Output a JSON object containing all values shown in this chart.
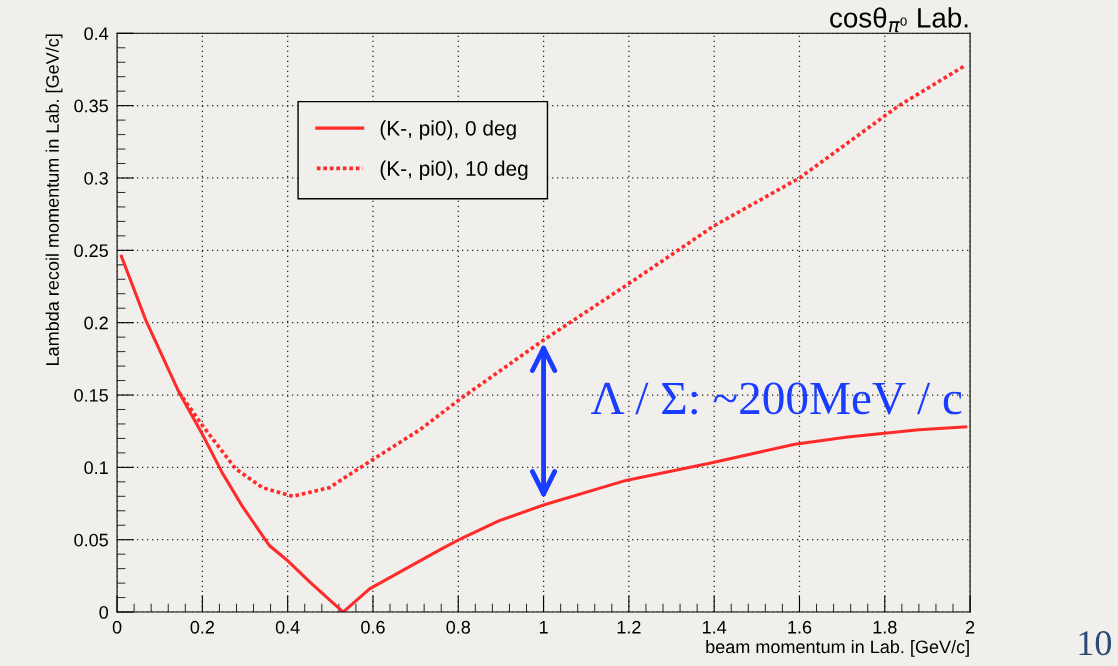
{
  "chart_data": {
    "type": "line",
    "title": "cosθ$_{π⁰}$ Lab.",
    "xlabel": "beam momentum in Lab. [GeV/c]",
    "ylabel": "Lambda recoil momentum in Lab. [GeV/c]",
    "series": [
      {
        "name": "(K-, pi0), 0 deg",
        "color": "#ff2a2a",
        "line_style": "solid",
        "x": [
          0.01,
          0.067,
          0.145,
          0.198,
          0.247,
          0.294,
          0.357,
          0.398,
          0.451,
          0.53,
          0.592,
          0.671,
          0.763,
          0.808,
          0.895,
          1.0,
          1.193,
          1.392,
          1.589,
          1.713,
          1.88,
          1.99
        ],
        "values": [
          0.246,
          0.202,
          0.152,
          0.124,
          0.096,
          0.073,
          0.046,
          0.036,
          0.021,
          0.0,
          0.016,
          0.029,
          0.044,
          0.051,
          0.063,
          0.074,
          0.091,
          0.103,
          0.116,
          0.121,
          0.126,
          0.128
        ]
      },
      {
        "name": "(K-, pi0), 10 deg",
        "color": "#ff2a2a",
        "line_style": "dotted",
        "x": [
          0.145,
          0.2,
          0.278,
          0.341,
          0.412,
          0.498,
          0.592,
          0.71,
          0.808,
          1.0,
          1.2,
          1.4,
          1.6,
          1.833,
          1.99
        ],
        "values": [
          0.152,
          0.129,
          0.099,
          0.086,
          0.08,
          0.086,
          0.104,
          0.126,
          0.148,
          0.188,
          0.227,
          0.267,
          0.3,
          0.35,
          0.378
        ]
      }
    ],
    "xlim": [
      0,
      2
    ],
    "ylim": [
      0,
      0.4
    ],
    "xticks": [
      0,
      0.2,
      0.4,
      0.6,
      0.8,
      1,
      1.2,
      1.4,
      1.6,
      1.8,
      2
    ],
    "yticks": [
      0,
      0.05,
      0.1,
      0.15,
      0.2,
      0.25,
      0.3,
      0.35,
      0.4
    ],
    "grid": true,
    "legend": "top left",
    "annotations": [
      "Λ / Σ: ~200MeV / c",
      "10"
    ]
  }
}
